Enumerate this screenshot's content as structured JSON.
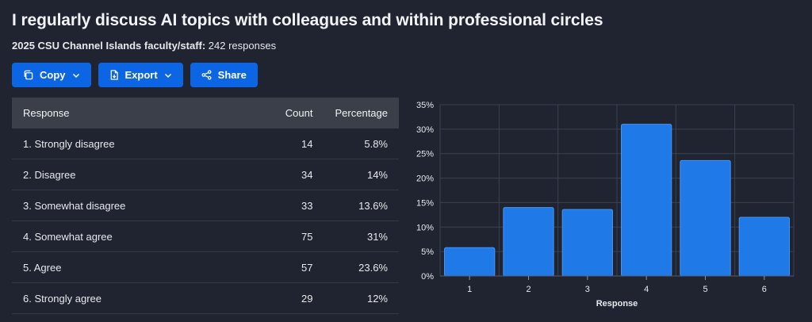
{
  "header": {
    "title": "I regularly discuss AI topics with colleagues and within professional circles",
    "subtitle_strong": "2025 CSU Channel Islands faculty/staff:",
    "subtitle_rest": " 242 responses"
  },
  "toolbar": {
    "copy_label": "Copy",
    "export_label": "Export",
    "share_label": "Share",
    "accent_color": "#0c66e4"
  },
  "table": {
    "headers": {
      "response": "Response",
      "count": "Count",
      "percentage": "Percentage"
    },
    "rows": [
      {
        "response": "1. Strongly disagree",
        "count": "14",
        "percentage": "5.8%"
      },
      {
        "response": "2. Disagree",
        "count": "34",
        "percentage": "14%"
      },
      {
        "response": "3. Somewhat disagree",
        "count": "33",
        "percentage": "13.6%"
      },
      {
        "response": "4. Somewhat agree",
        "count": "75",
        "percentage": "31%"
      },
      {
        "response": "5. Agree",
        "count": "57",
        "percentage": "23.6%"
      },
      {
        "response": "6. Strongly agree",
        "count": "29",
        "percentage": "12%"
      }
    ]
  },
  "chart_data": {
    "type": "bar",
    "categories": [
      "1",
      "2",
      "3",
      "4",
      "5",
      "6"
    ],
    "values": [
      5.8,
      14,
      13.6,
      31,
      23.6,
      12
    ],
    "title": "",
    "xlabel": "Response",
    "ylabel": "",
    "ylim": [
      0,
      35
    ],
    "yticks": [
      0,
      5,
      10,
      15,
      20,
      25,
      30,
      35
    ],
    "ytick_labels": [
      "0%",
      "5%",
      "10%",
      "15%",
      "20%",
      "25%",
      "30%",
      "35%"
    ],
    "grid": true,
    "legend": "none",
    "bar_color": "#1f7ae8"
  }
}
